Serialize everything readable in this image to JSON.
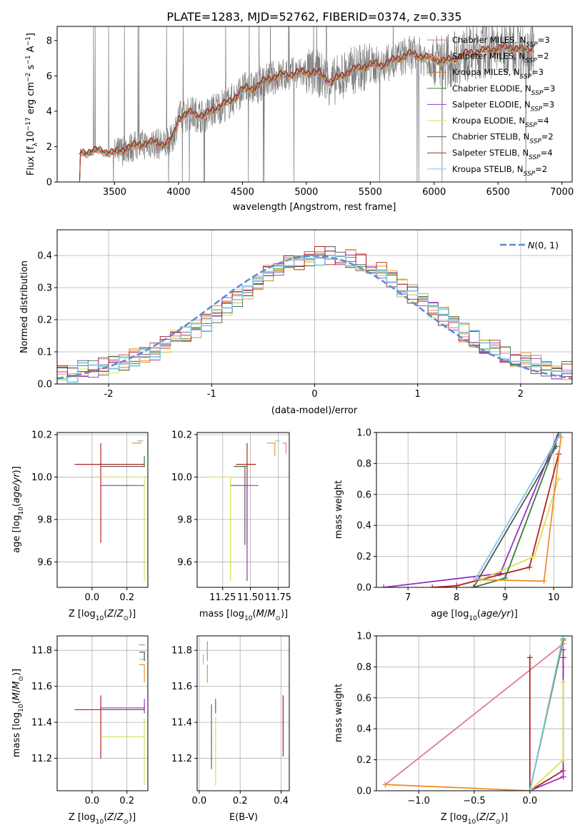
{
  "figure_title": "PLATE=1283, MJD=52762, FIBERID=0374, z=0.335",
  "colors": {
    "Chabrier MILES": "#e07b91",
    "Salpeter MILES": "#f28e2b",
    "Kroupa MILES": "#cc7722",
    "Chabrier ELODIE": "#3a7d3a",
    "Salpeter ELODIE": "#9b30c8",
    "Kroupa ELODIE": "#d4e157",
    "Chabrier STELIB": "#555555",
    "Salpeter STELIB": "#b22222",
    "Kroupa STELIB": "#7ec8e3",
    "data": "#7f7f7f",
    "normal": "#5b8bd6"
  },
  "chart_data": [
    {
      "id": "spectrum",
      "type": "line",
      "title": "PLATE=1283, MJD=52762, FIBERID=0374, z=0.335",
      "xlabel": "wavelength [Angstrom, rest frame]",
      "ylabel": "Flux [f_λ 10^-17 erg cm^-2 s^-1 A^-1]",
      "xlim": [
        3050,
        7080
      ],
      "ylim": [
        0,
        8.8
      ],
      "xticks": [
        3500,
        4000,
        4500,
        5000,
        5500,
        6000,
        6500,
        7000
      ],
      "yticks": [
        0,
        2,
        4,
        6,
        8
      ],
      "legend_position": "top-right",
      "model_continuum": {
        "x": [
          3220,
          3300,
          3400,
          3500,
          3600,
          3700,
          3800,
          3900,
          3950,
          4000,
          4100,
          4200,
          4300,
          4400,
          4500,
          4600,
          4700,
          4800,
          4900,
          5000,
          5100,
          5200,
          5300,
          5400,
          5500,
          5600,
          5700,
          5800,
          5900,
          6000,
          6100,
          6200,
          6300,
          6400,
          6500,
          6600,
          6700,
          6800
        ],
        "y": [
          1.6,
          1.7,
          1.75,
          1.6,
          1.9,
          2.1,
          2.2,
          2.1,
          2.4,
          3.6,
          3.9,
          3.7,
          4.2,
          4.5,
          5.2,
          5.3,
          5.8,
          6.0,
          6.1,
          6.2,
          6.1,
          5.6,
          6.1,
          6.4,
          6.6,
          6.6,
          6.9,
          7.2,
          7.1,
          6.9,
          6.8,
          7.1,
          7.3,
          7.4,
          7.5,
          7.6,
          7.4,
          7.6
        ]
      },
      "series": [
        {
          "name": "Chabrier MILES, N_SSP=3"
        },
        {
          "name": "Salpeter MILES, N_SSP=2"
        },
        {
          "name": "Kroupa MILES, N_SSP=3"
        },
        {
          "name": "Chabrier ELODIE, N_SSP=3"
        },
        {
          "name": "Salpeter ELODIE, N_SSP=3"
        },
        {
          "name": "Kroupa ELODIE, N_SSP=4"
        },
        {
          "name": "Chabrier STELIB, N_SSP=2"
        },
        {
          "name": "Salpeter STELIB, N_SSP=4"
        },
        {
          "name": "Kroupa STELIB, N_SSP=2"
        }
      ]
    },
    {
      "id": "residuals",
      "type": "line",
      "xlabel": "(data-model)/error",
      "ylabel": "Normed distribution",
      "xlim": [
        -2.5,
        2.5
      ],
      "ylim": [
        0,
        0.48
      ],
      "xticks": [
        -2,
        -1,
        0,
        1,
        2
      ],
      "yticks": [
        0.0,
        0.1,
        0.2,
        0.3,
        0.4
      ],
      "grid": true,
      "legend_position": "top-right",
      "legend": "N(0,1)",
      "bins": 50,
      "hist_envelope": [
        0.03,
        0.03,
        0.045,
        0.05,
        0.055,
        0.06,
        0.07,
        0.08,
        0.09,
        0.1,
        0.12,
        0.14,
        0.15,
        0.17,
        0.19,
        0.22,
        0.24,
        0.27,
        0.29,
        0.32,
        0.34,
        0.35,
        0.37,
        0.38,
        0.39,
        0.4,
        0.4,
        0.39,
        0.39,
        0.38,
        0.36,
        0.35,
        0.33,
        0.3,
        0.28,
        0.26,
        0.23,
        0.21,
        0.18,
        0.16,
        0.14,
        0.12,
        0.11,
        0.09,
        0.08,
        0.07,
        0.06,
        0.05,
        0.045,
        0.04
      ]
    },
    {
      "id": "age_vs_Z",
      "type": "scatter",
      "xlabel": "Z [log10(Z/Z_sun)]",
      "ylabel": "age [log10(age/yr)]",
      "xlim": [
        -0.2,
        0.32
      ],
      "ylim": [
        9.48,
        10.21
      ],
      "xticks": [
        0.0,
        0.2
      ],
      "yticks": [
        9.6,
        9.8,
        10.0,
        10.2
      ],
      "grid": true,
      "points": [
        {
          "model": "Salpeter STELIB",
          "x": 0.05,
          "y": 10.06,
          "xerr": [
            0.15,
            0.25
          ],
          "yerr": [
            0.37,
            0.1
          ]
        },
        {
          "model": "Salpeter ELODIE",
          "x": 0.2,
          "y": 9.96,
          "xerr": [
            0.15,
            0.1
          ],
          "yerr": [
            0.0,
            0.0
          ]
        },
        {
          "model": "Kroupa ELODIE",
          "x": 0.3,
          "y": 10.0,
          "xerr": [
            0.25,
            0.0
          ],
          "yerr": [
            0.49,
            0.0
          ]
        },
        {
          "model": "Chabrier STELIB",
          "x": 0.3,
          "y": 10.05,
          "xerr": [
            0.25,
            0.0
          ],
          "yerr": [
            0.0,
            0.0
          ]
        },
        {
          "model": "Chabrier ELODIE",
          "x": 0.3,
          "y": 10.05,
          "xerr": [
            0.0,
            0.0
          ],
          "yerr": [
            0.0,
            0.05
          ]
        },
        {
          "model": "Salpeter MILES",
          "x": 0.28,
          "y": 10.16,
          "xerr": [
            0.05,
            0.0
          ],
          "yerr": [
            0.0,
            0.0
          ]
        },
        {
          "model": "Chabrier MILES",
          "x": 0.28,
          "y": 10.17,
          "xerr": [
            0.02,
            0.0
          ],
          "yerr": [
            0.0,
            0.0
          ]
        },
        {
          "model": "Kroupa STELIB",
          "x": 0.29,
          "y": 10.17,
          "xerr": [
            0.03,
            0.0
          ],
          "yerr": [
            0.0,
            0.0
          ]
        }
      ]
    },
    {
      "id": "age_vs_mass",
      "type": "scatter",
      "xlabel": "mass [log10(M/M_sun)]",
      "xlim": [
        11.02,
        11.85
      ],
      "ylim": [
        9.48,
        10.21
      ],
      "xticks": [
        11.25,
        11.5,
        11.75
      ],
      "yticks": [
        9.6,
        9.8,
        10.0,
        10.2
      ],
      "grid": true,
      "points": [
        {
          "model": "Salpeter STELIB",
          "x": 11.47,
          "y": 10.06,
          "xerr": [
            0.1,
            0.08
          ],
          "yerr": [
            0.37,
            0.1
          ]
        },
        {
          "model": "Salpeter ELODIE",
          "x": 11.47,
          "y": 9.96,
          "xerr": [
            0.15,
            0.1
          ],
          "yerr": [
            0.45,
            0.0
          ]
        },
        {
          "model": "Kroupa ELODIE",
          "x": 11.32,
          "y": 10.0,
          "xerr": [
            0.2,
            0.0
          ],
          "yerr": [
            0.49,
            0.0
          ]
        },
        {
          "model": "Chabrier STELIB",
          "x": 11.45,
          "y": 10.05,
          "xerr": [
            0.1,
            0.0
          ],
          "yerr": [
            0.37,
            0.0
          ]
        },
        {
          "model": "Chabrier ELODIE",
          "x": 11.47,
          "y": 10.05,
          "xerr": [
            0.12,
            0.0
          ],
          "yerr": [
            0.0,
            0.0
          ]
        },
        {
          "model": "Salpeter MILES",
          "x": 11.72,
          "y": 10.16,
          "xerr": [
            0.07,
            0.0
          ],
          "yerr": [
            0.06,
            0.0
          ]
        },
        {
          "model": "Chabrier MILES",
          "x": 11.82,
          "y": 10.16,
          "xerr": [
            0.03,
            0.0
          ],
          "yerr": [
            0.05,
            0.0
          ]
        },
        {
          "model": "Kroupa STELIB",
          "x": 11.76,
          "y": 10.17,
          "xerr": [
            0.04,
            0.0
          ],
          "yerr": [
            0.0,
            0.0
          ]
        }
      ]
    },
    {
      "id": "weight_vs_age",
      "type": "line",
      "xlabel": "age [log10(age/yr)]",
      "ylabel": "mass weight",
      "xlim": [
        6.35,
        10.38
      ],
      "ylim": [
        0,
        1.0
      ],
      "xticks": [
        7,
        8,
        9,
        10
      ],
      "yticks": [
        0.0,
        0.2,
        0.4,
        0.6,
        0.8,
        1.0
      ],
      "grid": true,
      "series": [
        {
          "model": "Salpeter ELODIE",
          "x": [
            6.5,
            8.9,
            10.1
          ],
          "y": [
            0.0,
            0.09,
            1.0
          ]
        },
        {
          "model": "Salpeter STELIB",
          "x": [
            7.5,
            8.0,
            9.5,
            10.1
          ],
          "y": [
            0.0,
            0.01,
            0.13,
            0.86
          ]
        },
        {
          "model": "Kroupa ELODIE",
          "x": [
            8.5,
            9.6,
            10.1
          ],
          "y": [
            0.05,
            0.2,
            0.7
          ]
        },
        {
          "model": "Chabrier STELIB",
          "x": [
            8.35,
            10.05
          ],
          "y": [
            0.0,
            0.91
          ]
        },
        {
          "model": "Chabrier ELODIE",
          "x": [
            8.35,
            9.0,
            10.1
          ],
          "y": [
            0.0,
            0.06,
            0.98
          ]
        },
        {
          "model": "Salpeter MILES",
          "x": [
            8.4,
            9.8,
            10.15
          ],
          "y": [
            0.05,
            0.04,
            0.97
          ]
        },
        {
          "model": "Kroupa STELIB",
          "x": [
            8.4,
            10.15
          ],
          "y": [
            0.06,
            1.0
          ]
        }
      ]
    },
    {
      "id": "mass_vs_Z",
      "type": "scatter",
      "xlabel": "Z [log10(Z/Z_sun)]",
      "ylabel": "mass [log10(M/M_sun)]",
      "xlim": [
        -0.2,
        0.32
      ],
      "ylim": [
        11.02,
        11.88
      ],
      "xticks": [
        0.0,
        0.2
      ],
      "yticks": [
        11.2,
        11.4,
        11.6,
        11.8
      ],
      "grid": true,
      "points": [
        {
          "model": "Salpeter STELIB",
          "x": 0.05,
          "y": 11.47,
          "xerr": [
            0.15,
            0.25
          ],
          "yerr": [
            0.27,
            0.08
          ]
        },
        {
          "model": "Salpeter ELODIE",
          "x": 0.3,
          "y": 11.48,
          "xerr": [
            0.25,
            0.0
          ],
          "yerr": [
            0.03,
            0.05
          ]
        },
        {
          "model": "Kroupa ELODIE",
          "x": 0.3,
          "y": 11.32,
          "xerr": [
            0.25,
            0.0
          ],
          "yerr": [
            0.27,
            0.1
          ]
        },
        {
          "model": "Chabrier ELODIE",
          "x": 0.3,
          "y": 11.47,
          "xerr": [
            0.25,
            0.0
          ],
          "yerr": [
            0.0,
            0.0
          ]
        },
        {
          "model": "Chabrier MILES",
          "x": 0.3,
          "y": 11.83,
          "xerr": [
            0.03,
            0.0
          ],
          "yerr": [
            0.0,
            0.0
          ]
        },
        {
          "model": "Salpeter MILES",
          "x": 0.3,
          "y": 11.72,
          "xerr": [
            0.03,
            0.0
          ],
          "yerr": [
            0.1,
            0.0
          ]
        },
        {
          "model": "Kroupa STELIB",
          "x": 0.3,
          "y": 11.75,
          "xerr": [
            0.03,
            0.0
          ],
          "yerr": [
            0.0,
            0.0
          ]
        },
        {
          "model": "Chabrier STELIB",
          "x": 0.3,
          "y": 11.79,
          "xerr": [
            0.03,
            0.0
          ],
          "yerr": [
            0.05,
            0.0
          ]
        }
      ]
    },
    {
      "id": "mass_vs_EBV",
      "type": "scatter",
      "xlabel": "E(B-V)",
      "xlim": [
        -0.01,
        0.44
      ],
      "ylim": [
        11.02,
        11.88
      ],
      "xticks": [
        0.0,
        0.2,
        0.4
      ],
      "yticks": [
        11.2,
        11.4,
        11.6,
        11.8
      ],
      "grid": true,
      "points": [
        {
          "model": "Chabrier MILES",
          "x": 0.04,
          "y": 11.8,
          "yerr": [
            0.06,
            0.05
          ]
        },
        {
          "model": "Salpeter MILES",
          "x": 0.04,
          "y": 11.68,
          "yerr": [
            0.06,
            0.04
          ]
        },
        {
          "model": "Kroupa STELIB",
          "x": 0.02,
          "y": 11.75,
          "yerr": [
            0.03,
            0.03
          ]
        },
        {
          "model": "Chabrier ELODIE",
          "x": 0.06,
          "y": 11.32,
          "yerr": [
            0.18,
            0.18
          ]
        },
        {
          "model": "Salpeter ELODIE",
          "x": 0.08,
          "y": 11.48,
          "yerr": [
            0.03,
            0.05
          ]
        },
        {
          "model": "Kroupa ELODIE",
          "x": 0.08,
          "y": 11.25,
          "yerr": [
            0.2,
            0.18
          ]
        },
        {
          "model": "Salpeter STELIB",
          "x": 0.41,
          "y": 11.38,
          "yerr": [
            0.17,
            0.17
          ]
        }
      ]
    },
    {
      "id": "weight_vs_Z",
      "type": "line",
      "xlabel": "Z [log10(Z/Z_sun)]",
      "ylabel": "mass weight",
      "xlim": [
        -1.38,
        0.38
      ],
      "ylim": [
        0,
        1.0
      ],
      "xticks": [
        -1.0,
        -0.5,
        0.0
      ],
      "yticks": [
        0.0,
        0.2,
        0.4,
        0.6,
        0.8,
        1.0
      ],
      "grid": true,
      "series": [
        {
          "model": "Chabrier MILES",
          "x": [
            -1.3,
            0.3
          ],
          "y": [
            0.04,
            0.95
          ]
        },
        {
          "model": "Salpeter MILES",
          "x": [
            -1.3,
            0.0,
            0.3
          ],
          "y": [
            0.04,
            0.0,
            0.97
          ]
        },
        {
          "model": "Salpeter STELIB",
          "x": [
            0.0,
            0.0,
            0.3,
            0.3
          ],
          "y": [
            0.86,
            0.0,
            0.13,
            0.86
          ]
        },
        {
          "model": "Salpeter ELODIE",
          "x": [
            0.0,
            0.3,
            0.3
          ],
          "y": [
            0.0,
            0.09,
            0.91
          ]
        },
        {
          "model": "Kroupa ELODIE",
          "x": [
            0.0,
            0.3,
            0.3
          ],
          "y": [
            0.0,
            0.2,
            0.7
          ]
        },
        {
          "model": "Chabrier ELODIE",
          "x": [
            0.0,
            0.3
          ],
          "y": [
            0.0,
            0.98
          ]
        },
        {
          "model": "Kroupa STELIB",
          "x": [
            0.0,
            0.3
          ],
          "y": [
            0.0,
            1.0
          ]
        }
      ]
    }
  ]
}
